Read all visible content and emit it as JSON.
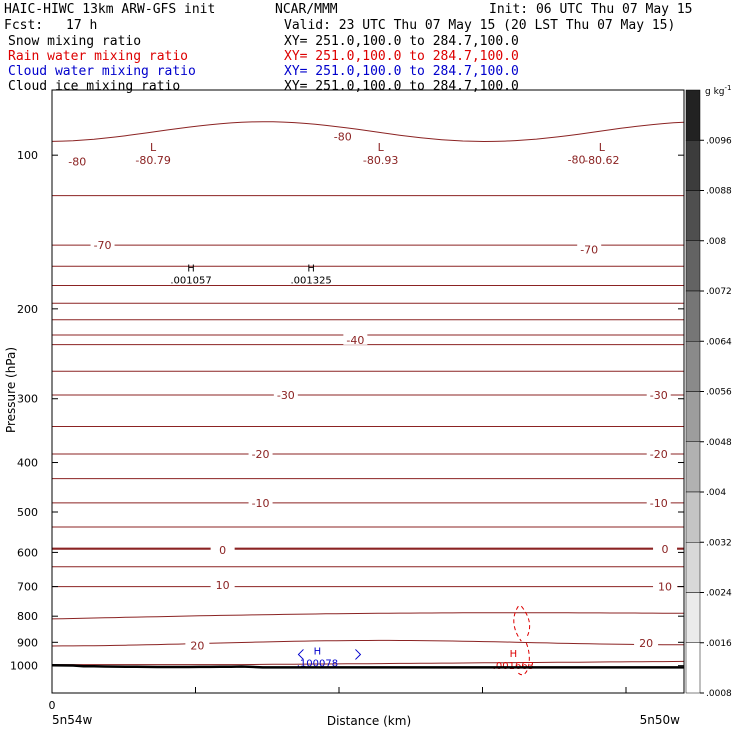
{
  "header": {
    "title": "HAIC-HIWC 13km ARW-GFS init",
    "org": "NCAR/MMM",
    "init": "Init: 06 UTC Thu 07 May 15",
    "fcst_label": "Fcst:",
    "fcst_value": "17 h",
    "valid": "Valid: 23 UTC Thu 07 May 15 (20 LST Thu 07 May 15)"
  },
  "fields": [
    {
      "name": "Snow mixing ratio",
      "xy": "XY= 251.0,100.0 to 284.7,100.0",
      "color": "#000000"
    },
    {
      "name": "Rain water mixing ratio",
      "xy": "XY= 251.0,100.0 to 284.7,100.0",
      "color": "#dd0000"
    },
    {
      "name": "Cloud water mixing ratio",
      "xy": "XY= 251.0,100.0 to 284.7,100.0",
      "color": "#0000cc"
    },
    {
      "name": "Cloud ice mixing ratio",
      "xy": "XY= 251.0,100.0 to 284.7,100.0",
      "color": "#000000"
    }
  ],
  "chart_data": {
    "type": "cross-section contour",
    "xlabel": "Distance (km)",
    "ylabel": "Pressure (hPa)",
    "x_origin_tick": "0",
    "x_left_label": "5n54w",
    "x_right_label": "5n50w",
    "y_axis": {
      "scale": "log-pressure",
      "top": 50,
      "bottom": 1050,
      "ticks": [
        100,
        200,
        300,
        400,
        500,
        600,
        700,
        800,
        900,
        1000
      ]
    },
    "temperature_contours": {
      "color": "#8b2323",
      "interval": 5,
      "labels": [
        {
          "value": "-80",
          "x": 0.04,
          "p": 103
        },
        {
          "value": "-80",
          "x": 0.46,
          "p": 92
        },
        {
          "value": "-80",
          "x": 0.83,
          "p": 102
        },
        {
          "value": "-70",
          "x": 0.08,
          "p": 150
        },
        {
          "value": "-70",
          "x": 0.85,
          "p": 153
        },
        {
          "value": "-40",
          "x": 0.48,
          "p": 230
        },
        {
          "value": "-30",
          "x": 0.37,
          "p": 295
        },
        {
          "value": "-30",
          "x": 0.96,
          "p": 295
        },
        {
          "value": "-20",
          "x": 0.33,
          "p": 385
        },
        {
          "value": "-20",
          "x": 0.96,
          "p": 385
        },
        {
          "value": "-10",
          "x": 0.33,
          "p": 480
        },
        {
          "value": "-10",
          "x": 0.96,
          "p": 480
        },
        {
          "value": "0",
          "x": 0.27,
          "p": 593
        },
        {
          "value": "0",
          "x": 0.97,
          "p": 591
        },
        {
          "value": "10",
          "x": 0.27,
          "p": 695
        },
        {
          "value": "10",
          "x": 0.97,
          "p": 700
        },
        {
          "value": "20",
          "x": 0.23,
          "p": 913
        },
        {
          "value": "20",
          "x": 0.94,
          "p": 903
        }
      ],
      "extrema": [
        {
          "mark": "L",
          "value": "-80.79",
          "x": 0.16,
          "p": 100
        },
        {
          "mark": "L",
          "value": "-80.93",
          "x": 0.52,
          "p": 100
        },
        {
          "mark": "L",
          "value": "-80.62",
          "x": 0.87,
          "p": 100
        }
      ]
    },
    "snow_extrema": [
      {
        "mark": "H",
        "value": ".001057",
        "x": 0.22,
        "p": 172
      },
      {
        "mark": "H",
        "value": ".001325",
        "x": 0.41,
        "p": 172
      }
    ],
    "cloud_water_extrema": [
      {
        "mark": "H",
        "value": ".100078",
        "x": 0.42,
        "p": 968
      }
    ],
    "rain_water_extrema": [
      {
        "mark": "H",
        "value": ".001663",
        "x": 0.73,
        "p": 980
      }
    ],
    "colorbar": {
      "unit": "g kg",
      "unit_exp": "-1",
      "labels": [
        ".0096",
        ".0088",
        ".008",
        ".0072",
        ".0064",
        ".0056",
        ".0048",
        ".004",
        ".0032",
        ".0024",
        ".0016",
        ".0008"
      ]
    }
  }
}
